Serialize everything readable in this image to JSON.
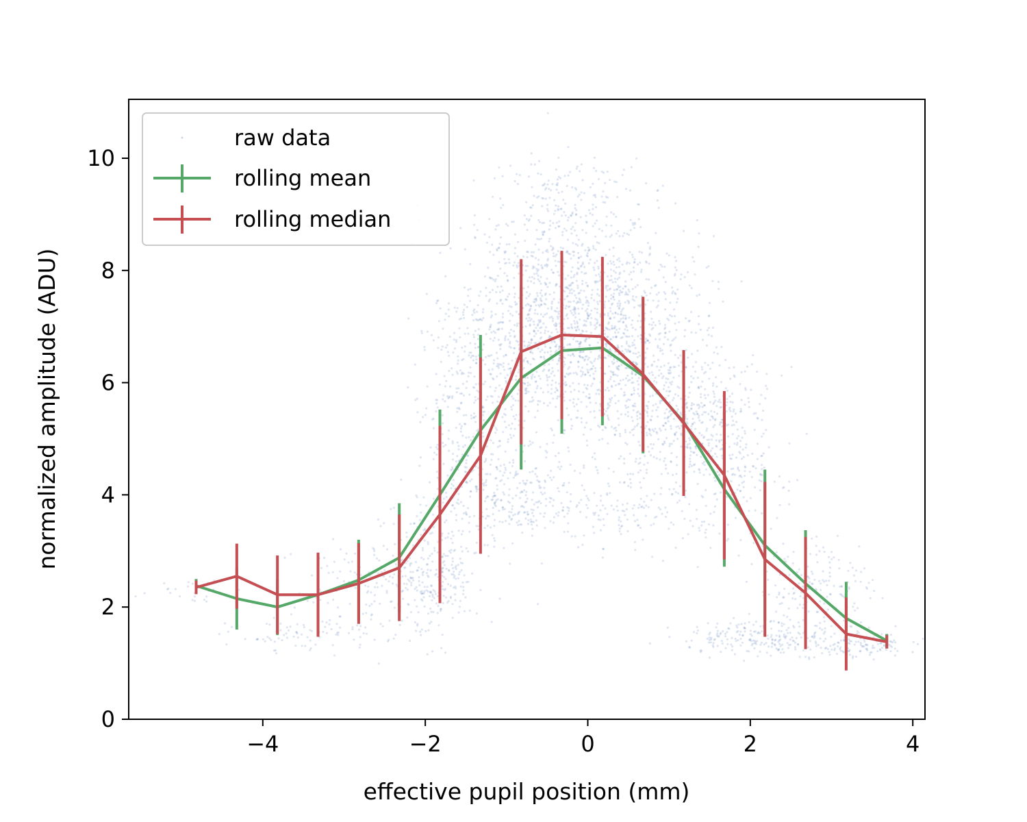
{
  "chart_data": {
    "type": "line",
    "title": "",
    "xlabel": "effective pupil position (mm)",
    "ylabel": "normalized amplitude (ADU)",
    "xlim": [
      -5.65,
      4.15
    ],
    "ylim": [
      0,
      11.05
    ],
    "xticks": [
      -4,
      -2,
      0,
      2,
      4
    ],
    "xtick_labels": [
      "−4",
      "−2",
      "0",
      "2",
      "4"
    ],
    "yticks": [
      0,
      2,
      4,
      6,
      8,
      10
    ],
    "ytick_labels": [
      "0",
      "2",
      "4",
      "6",
      "8",
      "10"
    ],
    "grid": false,
    "legend_position": "upper-left",
    "raw_data_description_label": "raw data",
    "raw_clusters": [
      {
        "x": -0.25,
        "y": 7.2,
        "sx": 0.55,
        "sy": 1.1,
        "n": 900
      },
      {
        "x": 0.45,
        "y": 6.6,
        "sx": 0.55,
        "sy": 1.0,
        "n": 700
      },
      {
        "x": -0.9,
        "y": 6.8,
        "sx": 0.35,
        "sy": 1.0,
        "n": 350
      },
      {
        "x": -1.6,
        "y": 5.6,
        "sx": 0.25,
        "sy": 1.0,
        "n": 250
      },
      {
        "x": -1.0,
        "y": 4.0,
        "sx": 0.45,
        "sy": 0.4,
        "n": 300
      },
      {
        "x": 1.2,
        "y": 5.2,
        "sx": 0.4,
        "sy": 0.6,
        "n": 400
      },
      {
        "x": 1.8,
        "y": 4.6,
        "sx": 0.3,
        "sy": 0.8,
        "n": 200
      },
      {
        "x": -1.9,
        "y": 2.6,
        "sx": 0.3,
        "sy": 0.6,
        "n": 260
      },
      {
        "x": -2.6,
        "y": 2.4,
        "sx": 0.5,
        "sy": 0.4,
        "n": 150
      },
      {
        "x": -3.4,
        "y": 1.5,
        "sx": 0.5,
        "sy": 0.15,
        "n": 90
      },
      {
        "x": 2.3,
        "y": 1.45,
        "sx": 0.6,
        "sy": 0.15,
        "n": 250
      },
      {
        "x": 2.8,
        "y": 2.3,
        "sx": 0.35,
        "sy": 0.5,
        "n": 180
      },
      {
        "x": 3.4,
        "y": 1.3,
        "sx": 0.3,
        "sy": 0.1,
        "n": 80
      },
      {
        "x": 0.4,
        "y": 3.6,
        "sx": 0.5,
        "sy": 0.3,
        "n": 120
      },
      {
        "x": -0.2,
        "y": 9.3,
        "sx": 0.5,
        "sy": 0.4,
        "n": 120
      },
      {
        "x": -4.8,
        "y": 2.3,
        "sx": 0.3,
        "sy": 0.1,
        "n": 30
      }
    ],
    "series": [
      {
        "name": "rolling mean",
        "color": "#55a868",
        "x": [
          -4.82,
          -4.32,
          -3.82,
          -3.32,
          -2.82,
          -2.32,
          -1.82,
          -1.32,
          -0.82,
          -0.32,
          0.18,
          0.68,
          1.18,
          1.68,
          2.18,
          2.68,
          3.18,
          3.68
        ],
        "y": [
          2.38,
          2.15,
          2.0,
          2.22,
          2.48,
          2.88,
          4.0,
          5.15,
          6.08,
          6.57,
          6.62,
          6.12,
          5.3,
          4.1,
          3.1,
          2.42,
          1.8,
          1.4
        ],
        "err": [
          0.12,
          0.55,
          0.5,
          0.72,
          0.72,
          0.97,
          1.52,
          1.7,
          1.63,
          1.48,
          1.38,
          1.38,
          1.28,
          1.38,
          1.35,
          0.95,
          0.65,
          0.12
        ]
      },
      {
        "name": "rolling median",
        "color": "#c44e52",
        "x": [
          -4.82,
          -4.32,
          -3.82,
          -3.32,
          -2.82,
          -2.32,
          -1.82,
          -1.32,
          -0.82,
          -0.32,
          0.18,
          0.68,
          1.18,
          1.68,
          2.18,
          2.68,
          3.18,
          3.68
        ],
        "y": [
          2.35,
          2.55,
          2.22,
          2.22,
          2.42,
          2.7,
          3.65,
          4.7,
          6.55,
          6.85,
          6.82,
          6.15,
          5.28,
          4.35,
          2.85,
          2.25,
          1.52,
          1.38
        ],
        "err": [
          0.12,
          0.58,
          0.7,
          0.75,
          0.72,
          0.95,
          1.58,
          1.75,
          1.65,
          1.5,
          1.42,
          1.38,
          1.3,
          1.5,
          1.38,
          1.0,
          0.65,
          0.12
        ]
      }
    ]
  }
}
